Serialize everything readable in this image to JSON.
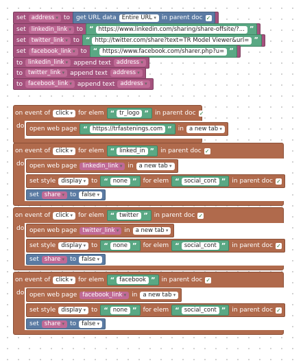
{
  "kw": {
    "set": "set",
    "to": "to",
    "append_text": "append text",
    "on_event_of": "on event of",
    "for_elem": "for elem",
    "in_parent_doc": "in parent doc",
    "do": "do",
    "open_web_page": "open web page",
    "set_style": "set style",
    "get_url_data": "get URL data",
    "quote_open": "“",
    "quote_close": "”",
    "check": "✓"
  },
  "top": {
    "set1": {
      "var": "address",
      "prop": "Entire URL"
    },
    "set2": {
      "var": "linkedin_link",
      "url": "https://www.linkedin.com/sharing/share-offsite/?..."
    },
    "set3": {
      "var": "twitter_link",
      "url": "http://twitter.com/share?text=TR Model Viewer&url="
    },
    "set4": {
      "var": "facebook_link",
      "url": "https://www.facebook.com/sharer.php?u="
    },
    "app1": {
      "var": "linkedin_link",
      "val": "address"
    },
    "app2": {
      "var": "twitter_link",
      "val": "address"
    },
    "app3": {
      "var": "facebook_link",
      "val": "address"
    }
  },
  "events": {
    "e1": {
      "event": "click",
      "elem": "tr_logo",
      "open_url": "https://trfastenings.com",
      "target": "a new tab"
    },
    "e2": {
      "event": "click",
      "elem": "linked_in",
      "open_var": "linkedin_link",
      "target": "a new tab",
      "style": "display",
      "style_val": "none",
      "style_elem": "social_cont",
      "svar": "share",
      "sval": "false"
    },
    "e3": {
      "event": "click",
      "elem": "twitter",
      "open_var": "twitter_link",
      "target": "a new tab",
      "style": "display",
      "style_val": "none",
      "style_elem": "social_cont",
      "svar": "share",
      "sval": "false"
    },
    "e4": {
      "event": "click",
      "elem": "facebook",
      "open_var": "facebook_link",
      "target": "a new tab",
      "style": "display",
      "style_val": "none",
      "style_elem": "social_cont",
      "svar": "share",
      "sval": "false"
    }
  }
}
